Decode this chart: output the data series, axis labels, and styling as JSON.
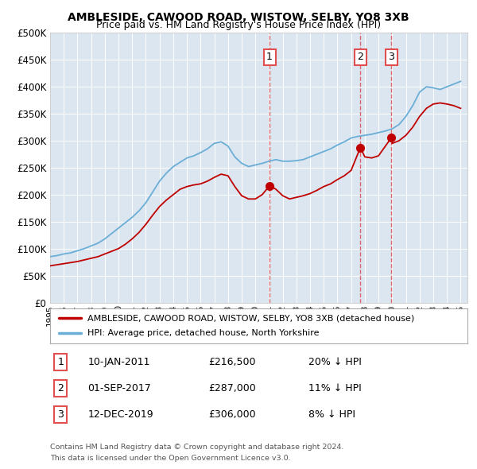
{
  "title": "AMBLESIDE, CAWOOD ROAD, WISTOW, SELBY, YO8 3XB",
  "subtitle": "Price paid vs. HM Land Registry's House Price Index (HPI)",
  "ylabel_ticks": [
    "£0",
    "£50K",
    "£100K",
    "£150K",
    "£200K",
    "£250K",
    "£300K",
    "£350K",
    "£400K",
    "£450K",
    "£500K"
  ],
  "ytick_values": [
    0,
    50000,
    100000,
    150000,
    200000,
    250000,
    300000,
    350000,
    400000,
    450000,
    500000
  ],
  "hpi_color": "#6aaed6",
  "price_color": "#c00000",
  "vline_color": "#e05050",
  "background_color": "#dce6f1",
  "legend_label_red": "AMBLESIDE, CAWOOD ROAD, WISTOW, SELBY, YO8 3XB (detached house)",
  "legend_label_blue": "HPI: Average price, detached house, North Yorkshire",
  "transactions": [
    {
      "num": 1,
      "date": "10-JAN-2011",
      "price": 216500,
      "pct": "20%",
      "dir": "↓",
      "year_x": 2011.04
    },
    {
      "num": 2,
      "date": "01-SEP-2017",
      "price": 287000,
      "pct": "11%",
      "dir": "↓",
      "year_x": 2017.67
    },
    {
      "num": 3,
      "date": "12-DEC-2019",
      "price": 306000,
      "pct": "8%",
      "dir": "↓",
      "year_x": 2019.95
    }
  ],
  "footer1": "Contains HM Land Registry data © Crown copyright and database right 2024.",
  "footer2": "This data is licensed under the Open Government Licence v3.0.",
  "xmin": 1995,
  "xmax": 2025.5,
  "years_hpi": [
    1995,
    1995.5,
    1996,
    1996.5,
    1997,
    1997.5,
    1998,
    1998.5,
    1999,
    1999.5,
    2000,
    2000.5,
    2001,
    2001.5,
    2002,
    2002.5,
    2003,
    2003.5,
    2004,
    2004.5,
    2005,
    2005.5,
    2006,
    2006.5,
    2007,
    2007.5,
    2008,
    2008.5,
    2009,
    2009.5,
    2010,
    2010.5,
    2011,
    2011.5,
    2012,
    2012.5,
    2013,
    2013.5,
    2014,
    2014.5,
    2015,
    2015.5,
    2016,
    2016.5,
    2017,
    2017.5,
    2018,
    2018.5,
    2019,
    2019.5,
    2020,
    2020.5,
    2021,
    2021.5,
    2022,
    2022.5,
    2023,
    2023.5,
    2024,
    2024.5,
    2025
  ],
  "hpi_values": [
    85000,
    87000,
    90000,
    92000,
    96000,
    100000,
    105000,
    110000,
    118000,
    128000,
    138000,
    148000,
    158000,
    170000,
    185000,
    205000,
    225000,
    240000,
    252000,
    260000,
    268000,
    272000,
    278000,
    285000,
    295000,
    298000,
    290000,
    270000,
    258000,
    252000,
    255000,
    258000,
    262000,
    265000,
    262000,
    262000,
    263000,
    265000,
    270000,
    275000,
    280000,
    285000,
    292000,
    298000,
    305000,
    308000,
    310000,
    312000,
    315000,
    318000,
    322000,
    330000,
    345000,
    365000,
    390000,
    400000,
    398000,
    395000,
    400000,
    405000,
    410000
  ],
  "years_red": [
    1995,
    1995.5,
    1996,
    1996.5,
    1997,
    1997.5,
    1998,
    1998.5,
    1999,
    1999.5,
    2000,
    2000.5,
    2001,
    2001.5,
    2002,
    2002.5,
    2003,
    2003.5,
    2004,
    2004.5,
    2005,
    2005.5,
    2006,
    2006.5,
    2007,
    2007.5,
    2008,
    2008.5,
    2009,
    2009.5,
    2010,
    2010.5,
    2011.04,
    2011.05,
    2011.5,
    2012,
    2012.5,
    2013,
    2013.5,
    2014,
    2014.5,
    2015,
    2015.5,
    2016,
    2016.5,
    2017,
    2017.67,
    2017.68,
    2018,
    2018.5,
    2019,
    2019.95,
    2019.96,
    2020,
    2020.5,
    2021,
    2021.5,
    2022,
    2022.5,
    2023,
    2023.5,
    2024,
    2024.5,
    2025
  ],
  "red_values": [
    68000,
    70000,
    72000,
    74000,
    76000,
    79000,
    82000,
    85000,
    90000,
    95000,
    100000,
    108000,
    118000,
    130000,
    145000,
    162000,
    178000,
    190000,
    200000,
    210000,
    215000,
    218000,
    220000,
    225000,
    232000,
    238000,
    235000,
    215000,
    198000,
    192000,
    192000,
    200000,
    216500,
    216500,
    210000,
    198000,
    192000,
    195000,
    198000,
    202000,
    208000,
    215000,
    220000,
    228000,
    235000,
    245000,
    287000,
    287000,
    270000,
    268000,
    272000,
    306000,
    306000,
    295000,
    300000,
    310000,
    325000,
    345000,
    360000,
    368000,
    370000,
    368000,
    365000,
    360000
  ]
}
